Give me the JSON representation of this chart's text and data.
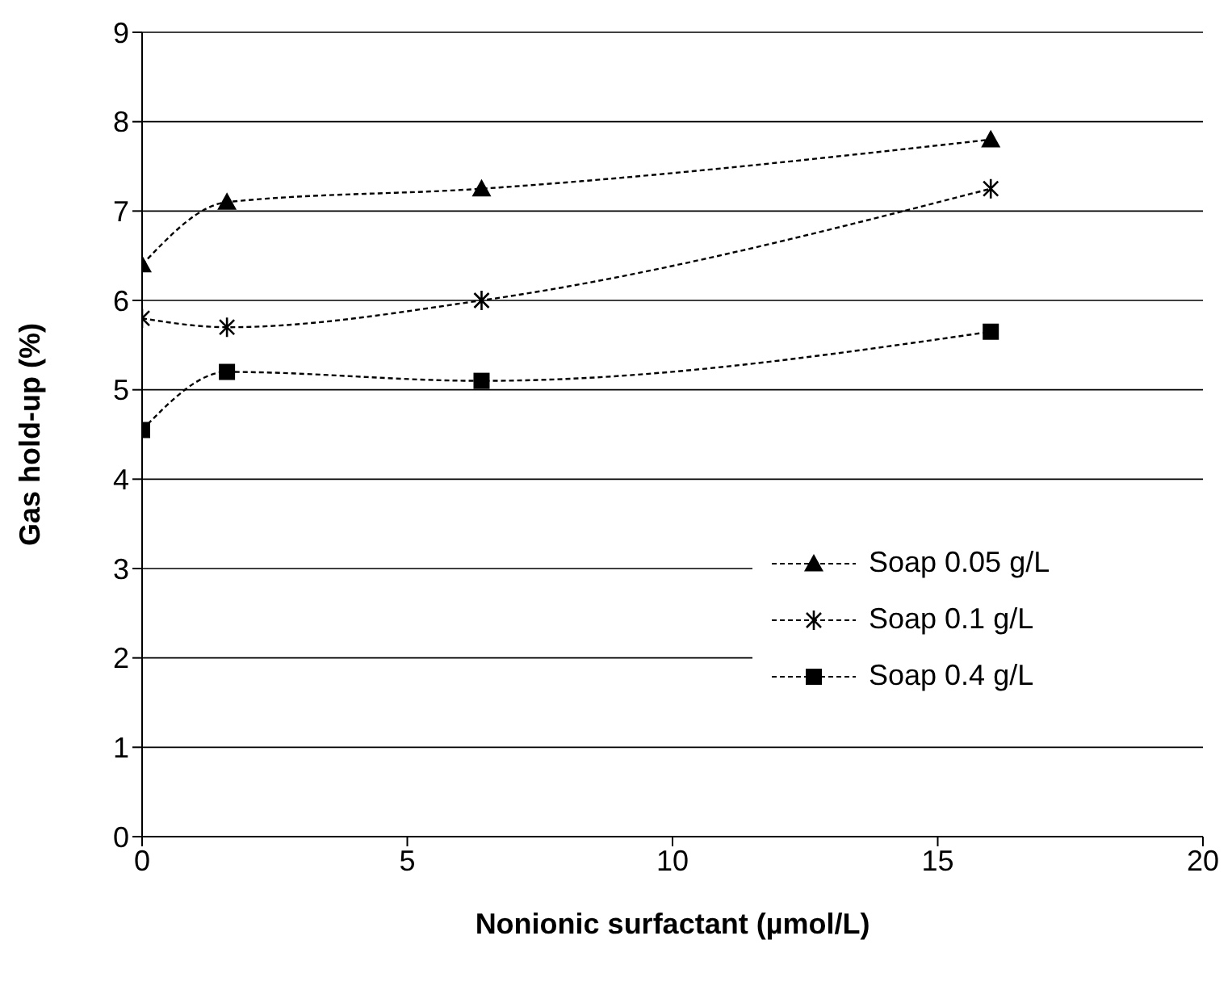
{
  "chart_data": {
    "type": "line",
    "xlabel": "Nonionic surfactant (µmol/L)",
    "ylabel": "Gas hold-up (%)",
    "x": [
      0,
      1.6,
      6.4,
      16
    ],
    "series": [
      {
        "name": "Soap 0.05 g/L",
        "color": "#000000",
        "marker": "triangle",
        "values": [
          6.4,
          7.1,
          7.25,
          7.8
        ]
      },
      {
        "name": "Soap 0.1 g/L",
        "color": "#000000",
        "marker": "cross",
        "values": [
          5.8,
          5.7,
          6.0,
          7.25
        ]
      },
      {
        "name": "Soap 0.4 g/L",
        "color": "#000000",
        "marker": "square",
        "values": [
          4.55,
          5.2,
          5.1,
          5.65
        ]
      }
    ],
    "xlim": [
      0,
      20
    ],
    "xticks": [
      0,
      5,
      10,
      15,
      20
    ],
    "ylim": [
      0,
      9
    ],
    "yticks": [
      0,
      1,
      2,
      3,
      4,
      5,
      6,
      7,
      8,
      9
    ],
    "grid": "y",
    "legend": "bottom right",
    "line_style": "dashed"
  }
}
